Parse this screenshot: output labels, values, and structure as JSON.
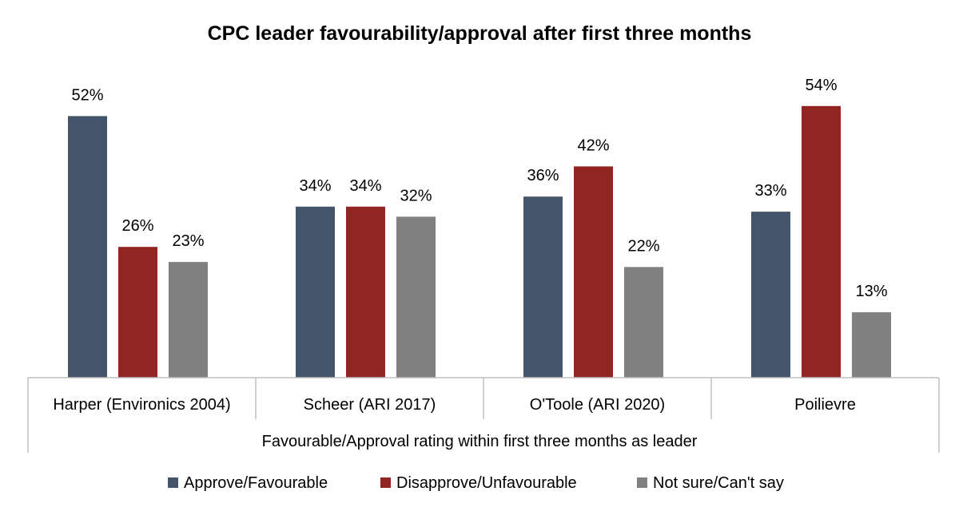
{
  "chart_data": {
    "type": "bar",
    "title": "CPC leader favourability/approval after first three months",
    "xlabel": "Favourable/Approval rating within first three months as leader",
    "ylabel": "",
    "categories": [
      "Harper (Environics 2004)",
      "Scheer (ARI 2017)",
      "O'Toole (ARI 2020)",
      "Poilievre"
    ],
    "series": [
      {
        "name": "Approve/Favourable",
        "values": [
          52,
          34,
          36,
          33
        ],
        "color": "#44546a"
      },
      {
        "name": "Disapprove/Unfavourable",
        "values": [
          26,
          34,
          42,
          54
        ],
        "color": "#922522"
      },
      {
        "name": "Not sure/Can't say",
        "values": [
          23,
          32,
          22,
          13
        ],
        "color": "#808080"
      }
    ],
    "value_suffix": "%",
    "ylim": [
      0,
      60
    ],
    "grid": false,
    "legend_position": "bottom"
  }
}
